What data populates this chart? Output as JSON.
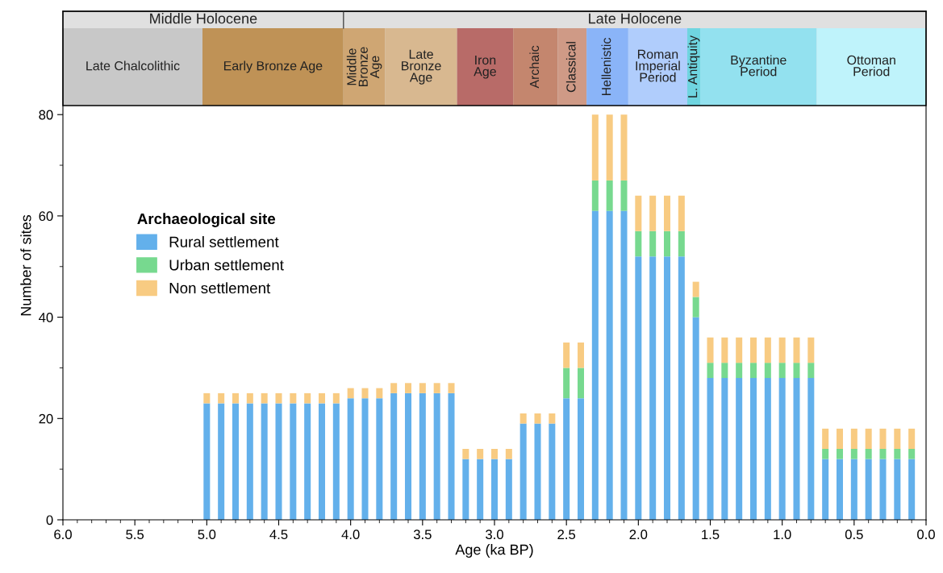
{
  "chart_data": {
    "type": "bar",
    "stacked": true,
    "xlabel": "Age (ka BP)",
    "ylabel": "Number of sites",
    "legend_title": "Archaeological site",
    "legend": "upper left",
    "grid": false,
    "x": [
      5.0,
      4.9,
      4.8,
      4.7,
      4.6,
      4.5,
      4.4,
      4.3,
      4.2,
      4.1,
      4.0,
      3.9,
      3.8,
      3.7,
      3.6,
      3.5,
      3.4,
      3.3,
      3.2,
      3.1,
      3.0,
      2.9,
      2.8,
      2.7,
      2.6,
      2.5,
      2.4,
      2.3,
      2.2,
      2.1,
      2.0,
      1.9,
      1.8,
      1.7,
      1.6,
      1.5,
      1.4,
      1.3,
      1.2,
      1.1,
      1.0,
      0.9,
      0.8,
      0.7,
      0.6,
      0.5,
      0.4,
      0.3,
      0.2,
      0.1
    ],
    "series": [
      {
        "name": "Rural settlement",
        "color": "#63b0eb",
        "values": [
          23,
          23,
          23,
          23,
          23,
          23,
          23,
          23,
          23,
          23,
          24,
          24,
          24,
          25,
          25,
          25,
          25,
          25,
          12,
          12,
          12,
          12,
          19,
          19,
          19,
          24,
          24,
          61,
          61,
          61,
          52,
          52,
          52,
          52,
          40,
          28,
          28,
          28,
          28,
          28,
          28,
          28,
          28,
          12,
          12,
          12,
          12,
          12,
          12,
          12
        ]
      },
      {
        "name": "Urban settlement",
        "color": "#77d98f",
        "values": [
          null,
          null,
          null,
          null,
          null,
          null,
          null,
          null,
          null,
          null,
          null,
          null,
          null,
          null,
          null,
          null,
          null,
          null,
          null,
          null,
          null,
          null,
          null,
          null,
          null,
          6,
          6,
          6,
          6,
          6,
          5,
          5,
          5,
          5,
          4,
          3,
          3,
          3,
          3,
          3,
          3,
          3,
          3,
          2,
          2,
          2,
          2,
          2,
          2,
          2
        ]
      },
      {
        "name": "Non settlement",
        "color": "#f8cb82",
        "values": [
          2,
          2,
          2,
          2,
          2,
          2,
          2,
          2,
          2,
          2,
          2,
          2,
          2,
          2,
          2,
          2,
          2,
          2,
          2,
          2,
          2,
          2,
          2,
          2,
          2,
          5,
          5,
          13,
          13,
          13,
          7,
          7,
          7,
          7,
          3,
          5,
          5,
          5,
          5,
          5,
          5,
          5,
          5,
          4,
          4,
          4,
          4,
          4,
          4,
          4
        ]
      }
    ],
    "xlim": [
      6.0,
      0.0
    ],
    "xticks": [
      {
        "value": 6.0,
        "label": "6.0"
      },
      {
        "value": 5.9,
        "label": null
      },
      {
        "value": 5.8,
        "label": null
      },
      {
        "value": 5.7,
        "label": null
      },
      {
        "value": 5.6,
        "label": null
      },
      {
        "value": 5.5,
        "label": "5.5"
      },
      {
        "value": 5.4,
        "label": null
      },
      {
        "value": 5.3,
        "label": null
      },
      {
        "value": 5.2,
        "label": null
      },
      {
        "value": 5.1,
        "label": null
      },
      {
        "value": 5.0,
        "label": "5.0"
      },
      {
        "value": 4.9,
        "label": null
      },
      {
        "value": 4.8,
        "label": null
      },
      {
        "value": 4.7,
        "label": null
      },
      {
        "value": 4.6,
        "label": null
      },
      {
        "value": 4.5,
        "label": "4.5"
      },
      {
        "value": 4.4,
        "label": null
      },
      {
        "value": 4.3,
        "label": null
      },
      {
        "value": 4.2,
        "label": null
      },
      {
        "value": 4.1,
        "label": null
      },
      {
        "value": 4.0,
        "label": "4.0"
      },
      {
        "value": 3.9,
        "label": null
      },
      {
        "value": 3.8,
        "label": null
      },
      {
        "value": 3.7,
        "label": null
      },
      {
        "value": 3.6,
        "label": null
      },
      {
        "value": 3.5,
        "label": "3.5"
      },
      {
        "value": 3.4,
        "label": null
      },
      {
        "value": 3.3,
        "label": null
      },
      {
        "value": 3.2,
        "label": null
      },
      {
        "value": 3.1,
        "label": null
      },
      {
        "value": 3.0,
        "label": "3.0"
      },
      {
        "value": 2.9,
        "label": null
      },
      {
        "value": 2.8,
        "label": null
      },
      {
        "value": 2.7,
        "label": null
      },
      {
        "value": 2.6,
        "label": null
      },
      {
        "value": 2.5,
        "label": "2.5"
      },
      {
        "value": 2.4,
        "label": null
      },
      {
        "value": 2.3,
        "label": null
      },
      {
        "value": 2.2,
        "label": null
      },
      {
        "value": 2.1,
        "label": null
      },
      {
        "value": 2.0,
        "label": "2.0"
      },
      {
        "value": 1.9,
        "label": null
      },
      {
        "value": 1.8,
        "label": null
      },
      {
        "value": 1.7,
        "label": null
      },
      {
        "value": 1.6,
        "label": null
      },
      {
        "value": 1.5,
        "label": "1.5"
      },
      {
        "value": 1.4,
        "label": null
      },
      {
        "value": 1.3,
        "label": null
      },
      {
        "value": 1.2,
        "label": null
      },
      {
        "value": 1.1,
        "label": null
      },
      {
        "value": 1.0,
        "label": "1.0"
      },
      {
        "value": 0.9,
        "label": null
      },
      {
        "value": 0.8,
        "label": null
      },
      {
        "value": 0.7,
        "label": null
      },
      {
        "value": 0.6,
        "label": null
      },
      {
        "value": 0.5,
        "label": "0.5"
      },
      {
        "value": 0.4,
        "label": null
      },
      {
        "value": 0.3,
        "label": null
      },
      {
        "value": 0.2,
        "label": null
      },
      {
        "value": 0.1,
        "label": null
      },
      {
        "value": 0.0,
        "label": "0.0"
      }
    ],
    "ylim": [
      0,
      100.4
    ],
    "yticks": [
      0,
      {
        "value": 10,
        "label": null
      },
      20,
      {
        "value": 30,
        "label": null
      },
      40,
      {
        "value": 50,
        "label": null
      },
      60,
      {
        "value": 70,
        "label": null
      },
      80
    ],
    "bands": [
      {
        "axis": "x",
        "from": 6.0,
        "to": 4.05,
        "label": "Middle Holocene",
        "color": "#e0e0e0"
      },
      {
        "axis": "x",
        "from": 4.05,
        "to": 0.0,
        "label": "Late Holocene",
        "color": "#e0e0e0"
      },
      {
        "axis": "x",
        "from": 6.0,
        "to": 5.03,
        "label": "Late Chalcolithic",
        "color": "#c8c8c8"
      },
      {
        "axis": "x",
        "from": 5.03,
        "to": 4.05,
        "label": "Early Bronze Age",
        "color": "#bf9256"
      },
      {
        "axis": "x",
        "from": 4.05,
        "to": 3.76,
        "label": "Middle\nBronze\nAge",
        "color": "#cfa673"
      },
      {
        "axis": "x",
        "from": 3.76,
        "to": 3.26,
        "label": "Late\nBronze\nAge",
        "color": "#d8b890"
      },
      {
        "axis": "x",
        "from": 3.26,
        "to": 2.87,
        "label": "Iron\nAge",
        "color": "#b86b68"
      },
      {
        "axis": "x",
        "from": 2.87,
        "to": 2.56,
        "label": "Archaic",
        "color": "#c4866e"
      },
      {
        "axis": "x",
        "from": 2.56,
        "to": 2.36,
        "label": "Classical",
        "color": "#cf9a86"
      },
      {
        "axis": "x",
        "from": 2.36,
        "to": 2.07,
        "label": "Hellenistic",
        "color": "#8ab4f8"
      },
      {
        "axis": "x",
        "from": 2.07,
        "to": 1.66,
        "label": "Roman\nImperial\nPeriod",
        "color": "#b0cdfc"
      },
      {
        "axis": "x",
        "from": 1.66,
        "to": 1.57,
        "label": "L. Antiquity",
        "color": "#6fd5e0"
      },
      {
        "axis": "x",
        "from": 1.57,
        "to": 0.76,
        "label": "Byzantine\nPeriod",
        "color": "#93e1ef"
      },
      {
        "axis": "x",
        "from": 0.76,
        "to": 0.0,
        "label": "Ottoman\nPeriod",
        "color": "#bff3fb"
      }
    ]
  }
}
